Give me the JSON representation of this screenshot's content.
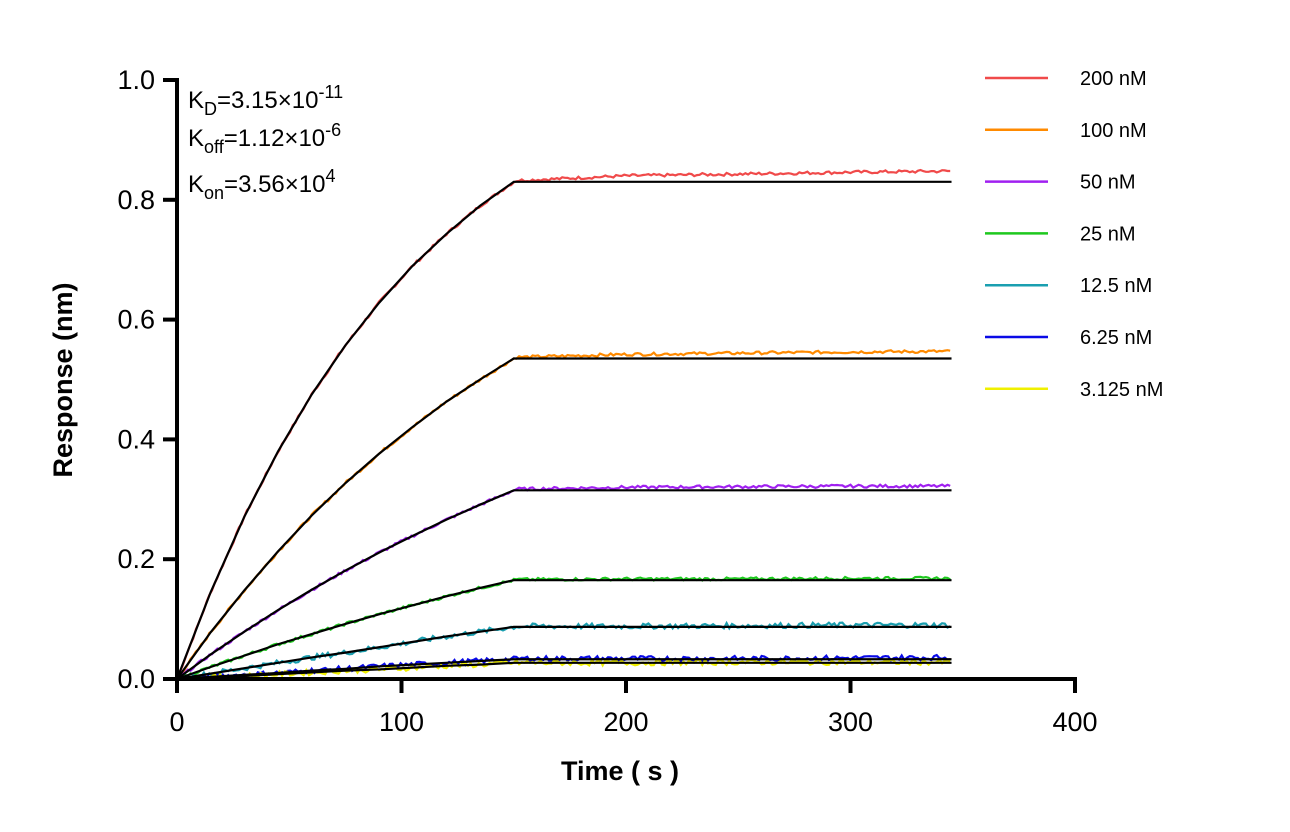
{
  "chart_data": {
    "type": "line",
    "xlabel": "Time ( s )",
    "ylabel": "Response (nm)",
    "xlim": [
      0,
      400
    ],
    "ylim": [
      0,
      1.0
    ],
    "xticks": [
      "0",
      "100",
      "200",
      "300",
      "400"
    ],
    "yticks": [
      "0.0",
      "0.2",
      "0.4",
      "0.6",
      "0.8",
      "1.0"
    ],
    "grid": false,
    "legend_position": "right",
    "annotations": {
      "kd": {
        "base": "K",
        "sub": "D",
        "value": "=3.15×10",
        "exp": "-11"
      },
      "koff": {
        "base": "K",
        "sub": "off",
        "value": "=1.12×10",
        "exp": "-6"
      },
      "kon": {
        "base": "K",
        "sub": "on",
        "value": "=3.56×10",
        "exp": "4"
      }
    },
    "fit_color": "#000000",
    "association_times": [
      0,
      15,
      30,
      45,
      60,
      75,
      90,
      105,
      120,
      135,
      150
    ],
    "dissociation_times": [
      150,
      200,
      250,
      300,
      345
    ],
    "series": [
      {
        "name": "200 nM",
        "color": "#f04a4a",
        "fit": [
          0,
          0.145,
          0.271,
          0.38,
          0.475,
          0.557,
          0.628,
          0.69,
          0.743,
          0.79,
          0.83
        ],
        "observed_dissociation": [
          0.832,
          0.84,
          0.843,
          0.846,
          0.848
        ]
      },
      {
        "name": "100 nM",
        "color": "#ff8a00",
        "fit": [
          0,
          0.078,
          0.148,
          0.213,
          0.273,
          0.327,
          0.376,
          0.421,
          0.463,
          0.5,
          0.535
        ],
        "observed_dissociation": [
          0.537,
          0.542,
          0.544,
          0.546,
          0.547
        ]
      },
      {
        "name": "50 nM",
        "color": "#a020f0",
        "fit": [
          0,
          0.041,
          0.079,
          0.115,
          0.149,
          0.181,
          0.211,
          0.239,
          0.266,
          0.291,
          0.315
        ],
        "observed_dissociation": [
          0.317,
          0.32,
          0.321,
          0.322,
          0.322
        ]
      },
      {
        "name": "25 nM",
        "color": "#1ec81e",
        "fit": [
          0,
          0.02,
          0.039,
          0.058,
          0.075,
          0.092,
          0.108,
          0.123,
          0.138,
          0.152,
          0.165
        ],
        "observed_dissociation": [
          0.166,
          0.167,
          0.167,
          0.168,
          0.168
        ]
      },
      {
        "name": "12.5 nM",
        "color": "#1a9fb0",
        "fit": [
          0,
          0.009,
          0.018,
          0.027,
          0.036,
          0.044,
          0.053,
          0.062,
          0.071,
          0.079,
          0.087
        ],
        "observed_dissociation": [
          0.088,
          0.088,
          0.089,
          0.09,
          0.09
        ]
      },
      {
        "name": "6.25 nM",
        "color": "#0a0ae6",
        "fit": [
          0,
          0.0035,
          0.007,
          0.01,
          0.014,
          0.017,
          0.021,
          0.024,
          0.027,
          0.03,
          0.033
        ],
        "observed_dissociation": [
          0.034,
          0.034,
          0.034,
          0.035,
          0.036
        ]
      },
      {
        "name": "3.125 nM",
        "color": "#f0f000",
        "fit": [
          0,
          0.003,
          0.005,
          0.008,
          0.011,
          0.014,
          0.016,
          0.019,
          0.022,
          0.024,
          0.027
        ],
        "observed_dissociation": [
          0.027,
          0.027,
          0.028,
          0.028,
          0.028
        ]
      }
    ]
  }
}
